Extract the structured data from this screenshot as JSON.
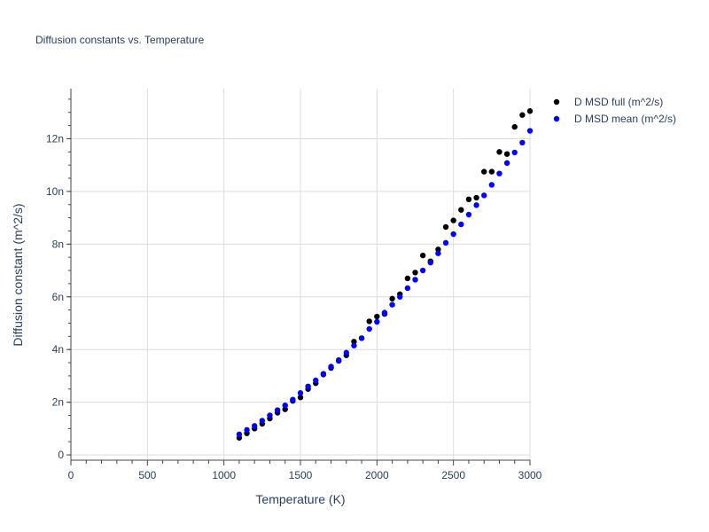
{
  "chart_data": {
    "type": "scatter",
    "title": "Diffusion constants vs. Temperature",
    "xlabel": "Temperature (K)",
    "ylabel": "Diffusion constant (m^2/s)",
    "xlim": [
      0,
      3000
    ],
    "ylim": [
      -2e-10,
      1.39e-08
    ],
    "x_ticks": [
      0,
      500,
      1000,
      1500,
      2000,
      2500,
      3000
    ],
    "x_tick_labels": [
      "0",
      "500",
      "1000",
      "1500",
      "2000",
      "2500",
      "3000"
    ],
    "y_ticks": [
      0,
      2e-09,
      4e-09,
      6e-09,
      8e-09,
      1e-08,
      1.2e-08
    ],
    "y_tick_labels": [
      "0",
      "2n",
      "4n",
      "6n",
      "8n",
      "10n",
      "12n"
    ],
    "grid": true,
    "legend_position": "top-right",
    "series": [
      {
        "name": "D MSD full (m^2/s)",
        "color": "#000000",
        "x": [
          1100,
          1150,
          1200,
          1250,
          1300,
          1350,
          1400,
          1450,
          1500,
          1550,
          1600,
          1650,
          1700,
          1750,
          1800,
          1850,
          1900,
          1950,
          2000,
          2050,
          2100,
          2150,
          2200,
          2250,
          2300,
          2350,
          2400,
          2450,
          2500,
          2550,
          2600,
          2650,
          2700,
          2750,
          2800,
          2850,
          2900,
          2950,
          3000
        ],
        "y": [
          6.5e-10,
          8.2e-10,
          1e-09,
          1.18e-09,
          1.38e-09,
          1.6e-09,
          1.73e-09,
          2.05e-09,
          2.18e-09,
          2.5e-09,
          2.72e-09,
          3.05e-09,
          3.3e-09,
          3.57e-09,
          3.78e-09,
          4.3e-09,
          4.43e-09,
          5.07e-09,
          5.25e-09,
          5.35e-09,
          5.93e-09,
          6.1e-09,
          6.7e-09,
          6.92e-09,
          7.57e-09,
          7.35e-09,
          7.8e-09,
          8.65e-09,
          8.9e-09,
          9.3e-09,
          9.7e-09,
          9.76e-09,
          1.075e-08,
          1.075e-08,
          1.15e-08,
          1.142e-08,
          1.245e-08,
          1.29e-08,
          1.305e-08
        ]
      },
      {
        "name": "D MSD mean (m^2/s)",
        "color": "#0000ff",
        "x": [
          1100,
          1150,
          1200,
          1250,
          1300,
          1350,
          1400,
          1450,
          1500,
          1550,
          1600,
          1650,
          1700,
          1750,
          1800,
          1850,
          1900,
          1950,
          2000,
          2050,
          2100,
          2150,
          2200,
          2250,
          2300,
          2350,
          2400,
          2450,
          2500,
          2550,
          2600,
          2650,
          2700,
          2750,
          2800,
          2850,
          2900,
          2950,
          3000
        ],
        "y": [
          7.8e-10,
          9.5e-10,
          1.1e-09,
          1.3e-09,
          1.5e-09,
          1.7e-09,
          1.88e-09,
          2.1e-09,
          2.35e-09,
          2.6e-09,
          2.83e-09,
          3.08e-09,
          3.35e-09,
          3.6e-09,
          3.88e-09,
          4.15e-09,
          4.43e-09,
          4.78e-09,
          5.05e-09,
          5.4e-09,
          5.7e-09,
          6e-09,
          6.33e-09,
          6.65e-09,
          7e-09,
          7.3e-09,
          7.65e-09,
          8.05e-09,
          8.38e-09,
          8.75e-09,
          9.12e-09,
          9.48e-09,
          9.85e-09,
          1.025e-08,
          1.068e-08,
          1.108e-08,
          1.148e-08,
          1.185e-08,
          1.23e-08
        ]
      }
    ]
  }
}
